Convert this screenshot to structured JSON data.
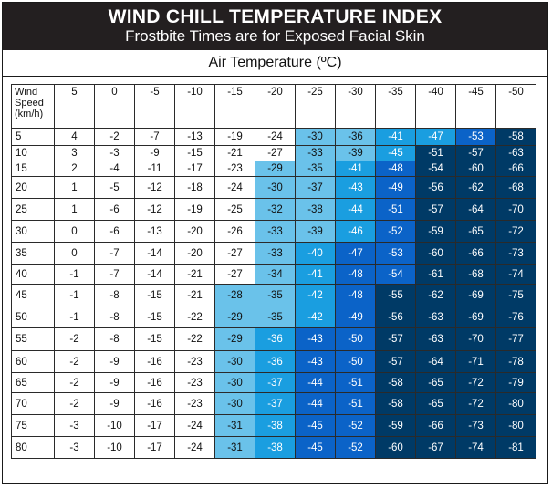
{
  "title": "WIND CHILL TEMPERATURE INDEX",
  "subtitle": "Frostbite Times are for Exposed Facial Skin",
  "air_temp_label": "Air Temperature (ºC)",
  "corner_label": [
    "Wind",
    "Speed",
    "(km/h)"
  ],
  "temperatures": [
    "5",
    "0",
    "-5",
    "-10",
    "-15",
    "-20",
    "-25",
    "-30",
    "-35",
    "-40",
    "-45",
    "-50"
  ],
  "rows": [
    {
      "speed": "5",
      "values": [
        "4",
        "-2",
        "-7",
        "-13",
        "-19",
        "-24",
        "-30",
        "-36",
        "-41",
        "-47",
        "-53",
        "-58"
      ],
      "levels": [
        0,
        0,
        0,
        0,
        0,
        0,
        1,
        1,
        2,
        2,
        3,
        4
      ]
    },
    {
      "speed": "10",
      "values": [
        "3",
        "-3",
        "-9",
        "-15",
        "-21",
        "-27",
        "-33",
        "-39",
        "-45",
        "-51",
        "-57",
        "-63"
      ],
      "levels": [
        0,
        0,
        0,
        0,
        0,
        0,
        1,
        1,
        2,
        4,
        4,
        4
      ]
    },
    {
      "speed": "15",
      "values": [
        "2",
        "-4",
        "-11",
        "-17",
        "-23",
        "-29",
        "-35",
        "-41",
        "-48",
        "-54",
        "-60",
        "-66"
      ],
      "levels": [
        0,
        0,
        0,
        0,
        0,
        1,
        1,
        2,
        3,
        4,
        4,
        4
      ]
    },
    {
      "speed": "20",
      "values": [
        "1",
        "-5",
        "-12",
        "-18",
        "-24",
        "-30",
        "-37",
        "-43",
        "-49",
        "-56",
        "-62",
        "-68"
      ],
      "levels": [
        0,
        0,
        0,
        0,
        0,
        1,
        1,
        2,
        3,
        4,
        4,
        4
      ]
    },
    {
      "speed": "25",
      "values": [
        "1",
        "-6",
        "-12",
        "-19",
        "-25",
        "-32",
        "-38",
        "-44",
        "-51",
        "-57",
        "-64",
        "-70"
      ],
      "levels": [
        0,
        0,
        0,
        0,
        0,
        1,
        1,
        2,
        3,
        4,
        4,
        4
      ]
    },
    {
      "speed": "30",
      "values": [
        "0",
        "-6",
        "-13",
        "-20",
        "-26",
        "-33",
        "-39",
        "-46",
        "-52",
        "-59",
        "-65",
        "-72"
      ],
      "levels": [
        0,
        0,
        0,
        0,
        0,
        1,
        1,
        2,
        3,
        4,
        4,
        4
      ]
    },
    {
      "speed": "35",
      "values": [
        "0",
        "-7",
        "-14",
        "-20",
        "-27",
        "-33",
        "-40",
        "-47",
        "-53",
        "-60",
        "-66",
        "-73"
      ],
      "levels": [
        0,
        0,
        0,
        0,
        0,
        1,
        2,
        3,
        3,
        4,
        4,
        4
      ]
    },
    {
      "speed": "40",
      "values": [
        "-1",
        "-7",
        "-14",
        "-21",
        "-27",
        "-34",
        "-41",
        "-48",
        "-54",
        "-61",
        "-68",
        "-74"
      ],
      "levels": [
        0,
        0,
        0,
        0,
        0,
        1,
        2,
        3,
        3,
        4,
        4,
        4
      ]
    },
    {
      "speed": "45",
      "values": [
        "-1",
        "-8",
        "-15",
        "-21",
        "-28",
        "-35",
        "-42",
        "-48",
        "-55",
        "-62",
        "-69",
        "-75"
      ],
      "levels": [
        0,
        0,
        0,
        0,
        1,
        1,
        2,
        3,
        4,
        4,
        4,
        4
      ]
    },
    {
      "speed": "50",
      "values": [
        "-1",
        "-8",
        "-15",
        "-22",
        "-29",
        "-35",
        "-42",
        "-49",
        "-56",
        "-63",
        "-69",
        "-76"
      ],
      "levels": [
        0,
        0,
        0,
        0,
        1,
        1,
        2,
        3,
        4,
        4,
        4,
        4
      ]
    },
    {
      "speed": "55",
      "values": [
        "-2",
        "-8",
        "-15",
        "-22",
        "-29",
        "-36",
        "-43",
        "-50",
        "-57",
        "-63",
        "-70",
        "-77"
      ],
      "levels": [
        0,
        0,
        0,
        0,
        1,
        2,
        3,
        3,
        4,
        4,
        4,
        4
      ]
    },
    {
      "speed": "60",
      "values": [
        "-2",
        "-9",
        "-16",
        "-23",
        "-30",
        "-36",
        "-43",
        "-50",
        "-57",
        "-64",
        "-71",
        "-78"
      ],
      "levels": [
        0,
        0,
        0,
        0,
        1,
        2,
        3,
        3,
        4,
        4,
        4,
        4
      ]
    },
    {
      "speed": "65",
      "values": [
        "-2",
        "-9",
        "-16",
        "-23",
        "-30",
        "-37",
        "-44",
        "-51",
        "-58",
        "-65",
        "-72",
        "-79"
      ],
      "levels": [
        0,
        0,
        0,
        0,
        1,
        2,
        3,
        3,
        4,
        4,
        4,
        4
      ]
    },
    {
      "speed": "70",
      "values": [
        "-2",
        "-9",
        "-16",
        "-23",
        "-30",
        "-37",
        "-44",
        "-51",
        "-58",
        "-65",
        "-72",
        "-80"
      ],
      "levels": [
        0,
        0,
        0,
        0,
        1,
        2,
        3,
        3,
        4,
        4,
        4,
        4
      ]
    },
    {
      "speed": "75",
      "values": [
        "-3",
        "-10",
        "-17",
        "-24",
        "-31",
        "-38",
        "-45",
        "-52",
        "-59",
        "-66",
        "-73",
        "-80"
      ],
      "levels": [
        0,
        0,
        0,
        0,
        1,
        2,
        3,
        3,
        4,
        4,
        4,
        4
      ]
    },
    {
      "speed": "80",
      "values": [
        "-3",
        "-10",
        "-17",
        "-24",
        "-31",
        "-38",
        "-45",
        "-52",
        "-60",
        "-67",
        "-74",
        "-81"
      ],
      "levels": [
        0,
        0,
        0,
        0,
        1,
        2,
        3,
        3,
        4,
        4,
        4,
        4
      ]
    }
  ],
  "colors": {
    "header_bg": "#231f20",
    "level_1": "#6ac2ea",
    "level_2": "#1a9ee0",
    "level_3": "#0b63c8",
    "level_4": "#003a66"
  }
}
